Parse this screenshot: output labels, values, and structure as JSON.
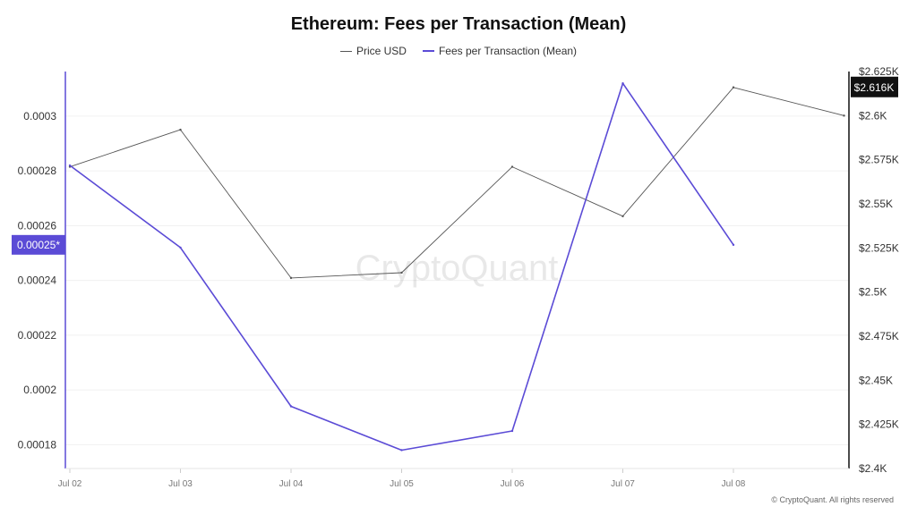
{
  "chart_data": {
    "type": "line",
    "title": "Ethereum: Fees per Transaction (Mean)",
    "x": [
      "Jul 02",
      "Jul 03",
      "Jul 04",
      "Jul 05",
      "Jul 06",
      "Jul 07",
      "Jul 08",
      ""
    ],
    "series": [
      {
        "name": "Price USD",
        "axis": "right",
        "color": "#555555",
        "values": [
          2.571,
          2.592,
          2.508,
          2.511,
          2.571,
          2.543,
          2.616,
          2.6
        ]
      },
      {
        "name": "Fees per Transaction (Mean)",
        "axis": "left",
        "color": "#5b4bd6",
        "values": [
          0.000282,
          0.000252,
          0.000194,
          0.000178,
          0.000185,
          0.000312,
          0.000253,
          null
        ]
      }
    ],
    "left_axis": {
      "ticks": [
        0.00018,
        0.0002,
        0.00022,
        0.00024,
        0.00026,
        0.00028,
        0.0003
      ],
      "tick_labels": [
        "0.00018",
        "0.0002",
        "0.00022",
        "0.00024",
        "0.00026",
        "0.00028",
        "0.0003"
      ],
      "ylim": [
        0.0001713,
        0.0003163
      ]
    },
    "right_axis": {
      "ticks": [
        2.4,
        2.425,
        2.45,
        2.475,
        2.5,
        2.525,
        2.55,
        2.575,
        2.6,
        2.625
      ],
      "tick_labels": [
        "$2.4K",
        "$2.425K",
        "$2.45K",
        "$2.475K",
        "$2.5K",
        "$2.525K",
        "$2.55K",
        "$2.575K",
        "$2.6K",
        "$2.625K"
      ],
      "ylim": [
        2.4,
        2.625
      ]
    },
    "grid": true,
    "legend_position": "top-center",
    "current_value_labels": {
      "left": "0.00025*",
      "right": "$2.616K"
    },
    "watermark": "CryptoQuant",
    "colors": {
      "left_badge": "#5b4bd6",
      "right_badge": "#111111",
      "grid": "#f0f0f0"
    }
  },
  "footer": "© CryptoQuant. All rights reserved"
}
